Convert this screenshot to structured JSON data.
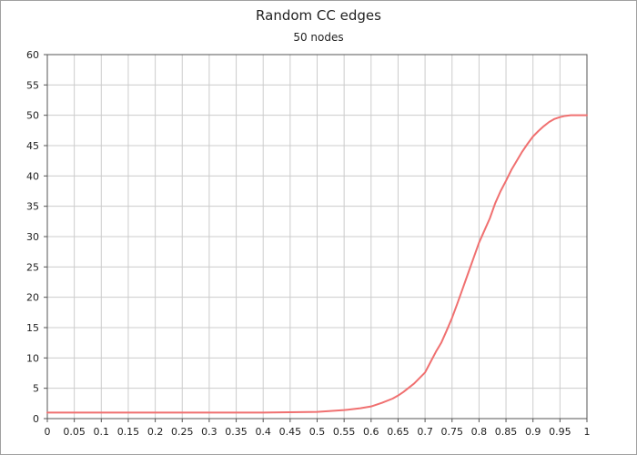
{
  "chart_data": {
    "type": "line",
    "title": "Random CC edges",
    "subtitle": "50 nodes",
    "xlabel": "",
    "ylabel": "",
    "xlim": [
      0,
      1
    ],
    "ylim": [
      0,
      60
    ],
    "x_ticks": [
      "0",
      "0.05",
      "0.1",
      "0.15",
      "0.2",
      "0.25",
      "0.3",
      "0.35",
      "0.4",
      "0.45",
      "0.5",
      "0.55",
      "0.6",
      "0.65",
      "0.7",
      "0.75",
      "0.8",
      "0.85",
      "0.9",
      "0.95",
      "1"
    ],
    "y_ticks": [
      "0",
      "5",
      "10",
      "15",
      "20",
      "25",
      "30",
      "35",
      "40",
      "45",
      "50",
      "55",
      "60"
    ],
    "grid": true,
    "legend": "none",
    "series": [
      {
        "color": "#f07070",
        "x": [
          0,
          0.05,
          0.1,
          0.15,
          0.2,
          0.25,
          0.3,
          0.35,
          0.4,
          0.45,
          0.5,
          0.55,
          0.58,
          0.6,
          0.62,
          0.64,
          0.65,
          0.66,
          0.68,
          0.7,
          0.71,
          0.72,
          0.73,
          0.74,
          0.75,
          0.76,
          0.77,
          0.78,
          0.79,
          0.8,
          0.81,
          0.82,
          0.83,
          0.84,
          0.85,
          0.86,
          0.87,
          0.88,
          0.89,
          0.9,
          0.91,
          0.92,
          0.93,
          0.94,
          0.95,
          0.96,
          0.97,
          0.98,
          0.99,
          1.0
        ],
        "y": [
          1.0,
          1.0,
          1.0,
          1.0,
          1.0,
          1.0,
          1.0,
          1.0,
          1.0,
          1.05,
          1.1,
          1.4,
          1.7,
          2.0,
          2.6,
          3.3,
          3.8,
          4.4,
          5.8,
          7.6,
          9.3,
          11.0,
          12.5,
          14.5,
          16.6,
          19.0,
          21.5,
          24.0,
          26.5,
          29.0,
          31.0,
          33.0,
          35.5,
          37.5,
          39.2,
          41.0,
          42.5,
          44.0,
          45.3,
          46.5,
          47.4,
          48.2,
          48.9,
          49.4,
          49.7,
          49.9,
          50.0,
          50.0,
          50.0,
          50.0
        ]
      }
    ]
  }
}
